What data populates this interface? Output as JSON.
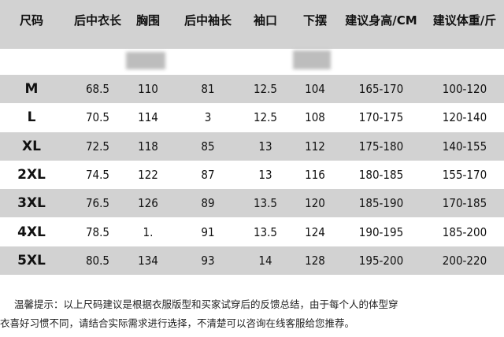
{
  "table": {
    "header": [
      "尺码",
      "后中衣长",
      "胸围",
      "后中袖长",
      "袖口",
      "下摆",
      "建议身高/CM",
      "建议体重/斤"
    ],
    "rows": [
      [
        "M",
        "68.5",
        "110",
        "81",
        "12.5",
        "104",
        "165-170",
        "100-120"
      ],
      [
        "L",
        "70.5",
        "114",
        "3",
        "12.5",
        "108",
        "170-175",
        "120-140"
      ],
      [
        "XL",
        "72.5",
        "118",
        "85",
        "13",
        "112",
        "175-180",
        "140-155"
      ],
      [
        "2XL",
        "74.5",
        "122",
        "87",
        "13",
        "116",
        "180-185",
        "155-170"
      ],
      [
        "3XL",
        "76.5",
        "126",
        "89",
        "13.5",
        "120",
        "185-190",
        "170-185"
      ],
      [
        "4XL",
        "78.5",
        "1.",
        "91",
        "13.5",
        "124",
        "190-195",
        "185-200"
      ],
      [
        "5XL",
        "80.5",
        "134",
        "93",
        "14",
        "128",
        "195-200",
        "200-220"
      ]
    ]
  },
  "note": [
    "温馨提示：以上尺码建议是根据衣服版型和买家试穿后的反馈总结，由于每个人的体型穿",
    "衣喜好习惯不同，请结合实际需求进行选择，不清楚可以咨询在线客服给您推荐。"
  ]
}
